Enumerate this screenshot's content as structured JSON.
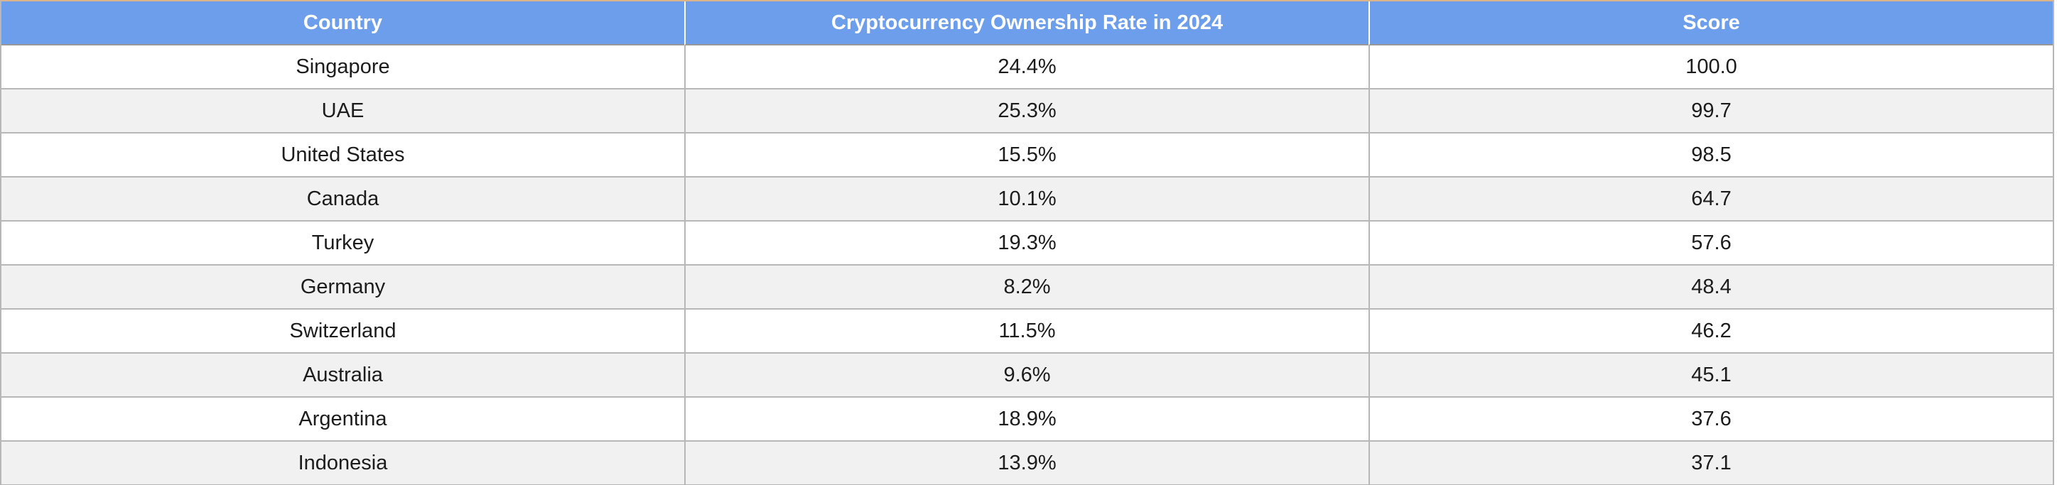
{
  "chart_data": {
    "type": "table",
    "columns": [
      "Country",
      "Cryptocurrency Ownership Rate in 2024",
      "Score"
    ],
    "rows": [
      [
        "Singapore",
        "24.4%",
        "100.0"
      ],
      [
        "UAE",
        "25.3%",
        "99.7"
      ],
      [
        "United States",
        "15.5%",
        "98.5"
      ],
      [
        "Canada",
        "10.1%",
        "64.7"
      ],
      [
        "Turkey",
        "19.3%",
        "57.6"
      ],
      [
        "Germany",
        "8.2%",
        "48.4"
      ],
      [
        "Switzerland",
        "11.5%",
        "46.2"
      ],
      [
        "Australia",
        "9.6%",
        "45.1"
      ],
      [
        "Argentina",
        "18.9%",
        "37.6"
      ],
      [
        "Indonesia",
        "13.9%",
        "37.1"
      ]
    ]
  },
  "colors": {
    "header_bg": "#6d9eeb",
    "header_text": "#ffffff",
    "row_bg": "#ffffff",
    "row_alt_bg": "#f1f1f1",
    "grid_border": "#b7b7b7",
    "header_divider": "#ffffff",
    "top_accent": "#dcb48c",
    "body_text": "#1c1c1c"
  }
}
